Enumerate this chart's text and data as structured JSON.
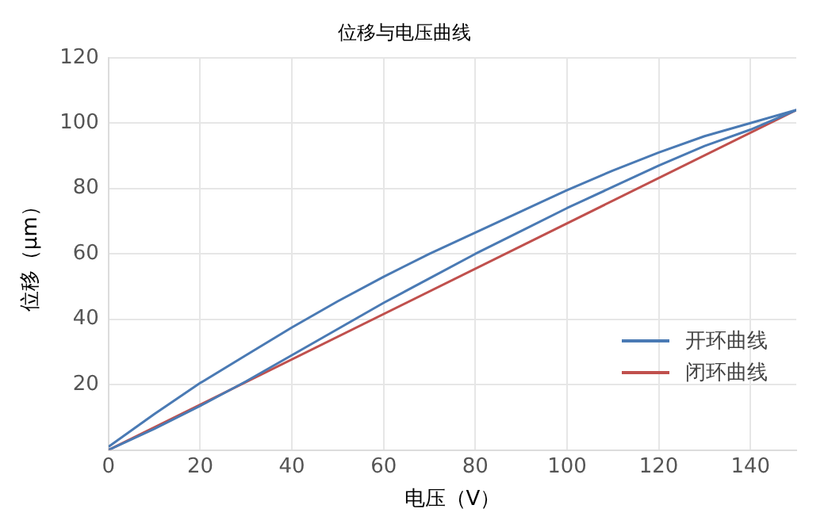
{
  "chart_data": {
    "type": "line",
    "title": "位移与电压曲线",
    "xlabel": "电压（V）",
    "ylabel": "位移（μm）",
    "xlim": [
      0,
      150
    ],
    "xticks": [
      0,
      20,
      40,
      60,
      80,
      100,
      120,
      140
    ],
    "ylim": [
      0,
      120
    ],
    "yticks": [
      20,
      40,
      60,
      80,
      100,
      120
    ],
    "grid": true,
    "legend": "bottom right",
    "series": [
      {
        "name": "开环曲线",
        "color": "#4a7ab4",
        "x": [
          0,
          10,
          20,
          30,
          40,
          50,
          60,
          70,
          80,
          90,
          100,
          110,
          120,
          130,
          140,
          150,
          140,
          130,
          120,
          110,
          100,
          90,
          80,
          70,
          60,
          50,
          40,
          30,
          20,
          10,
          0
        ],
        "values": [
          0,
          6.5,
          13.5,
          21,
          29,
          37,
          45,
          52.5,
          60,
          67,
          74,
          80.5,
          87,
          93,
          98,
          104,
          100,
          96,
          91,
          85.5,
          79.5,
          73,
          66.5,
          60,
          53,
          45.5,
          37.5,
          29,
          20.5,
          11,
          1
        ]
      },
      {
        "name": "闭环曲线",
        "color": "#c0504d",
        "x": [
          0,
          150
        ],
        "values": [
          0,
          104
        ]
      }
    ]
  }
}
